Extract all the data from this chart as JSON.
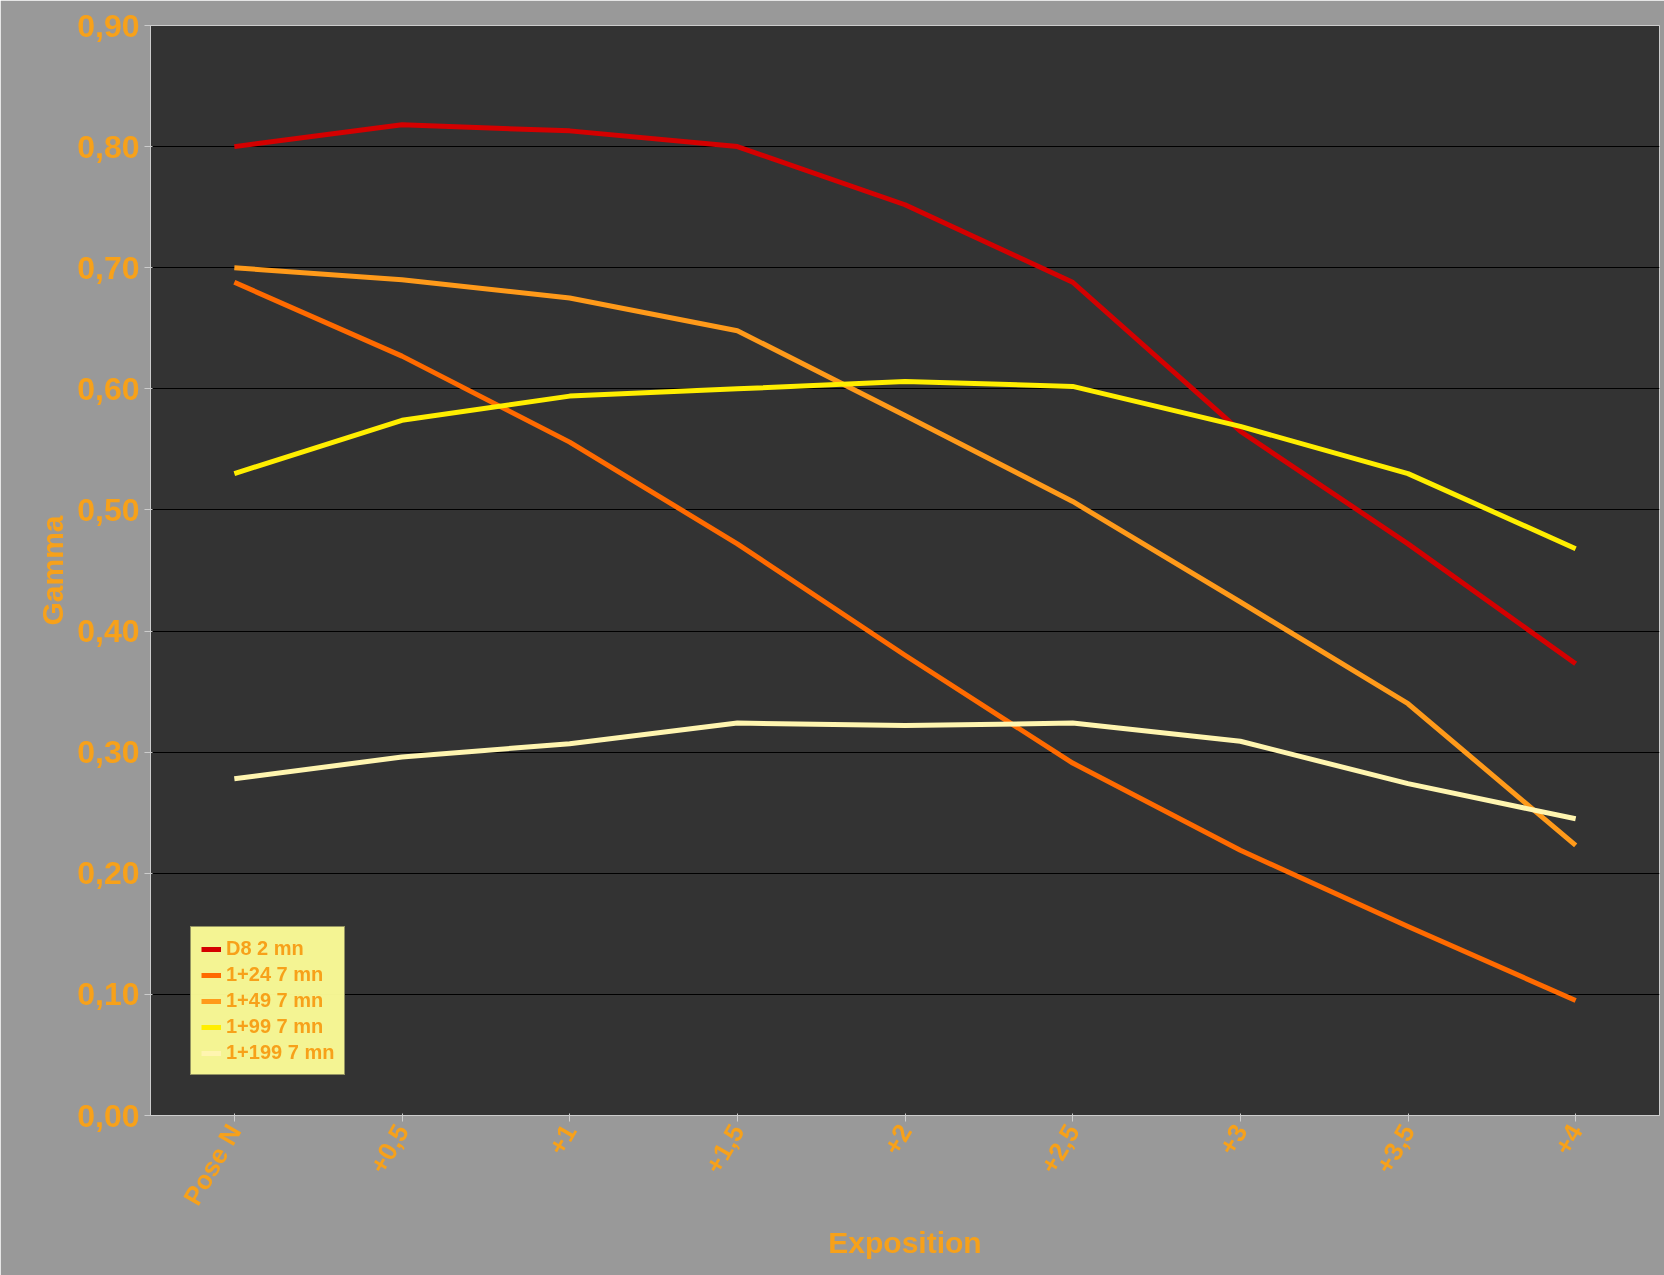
{
  "chart_data": {
    "type": "line",
    "xlabel": "Exposition",
    "ylabel": "Gamma",
    "categories": [
      "Pose N",
      "+0,5",
      "+1",
      "+1,5",
      "+2",
      "+2,5",
      "+3",
      "+3,5",
      "+4"
    ],
    "series": [
      {
        "name": "D8 2 mn",
        "color": "#d40000",
        "values": [
          0.8,
          0.818,
          0.813,
          0.8,
          0.752,
          0.688,
          0.565,
          0.472,
          0.373
        ]
      },
      {
        "name": "1+24 7 mn",
        "color": "#ff6a00",
        "values": [
          0.688,
          0.627,
          0.556,
          0.472,
          0.38,
          0.291,
          0.219,
          0.156,
          0.095
        ]
      },
      {
        "name": "1+49 7 mn",
        "color": "#ff9a1a",
        "values": [
          0.7,
          0.69,
          0.675,
          0.648,
          0.578,
          0.507,
          0.424,
          0.34,
          0.223
        ]
      },
      {
        "name": "1+99 7 mn",
        "color": "#ffee00",
        "values": [
          0.53,
          0.574,
          0.594,
          0.6,
          0.606,
          0.602,
          0.569,
          0.53,
          0.468
        ]
      },
      {
        "name": "1+199 7 mn",
        "color": "#fff5b0",
        "values": [
          0.278,
          0.296,
          0.307,
          0.324,
          0.322,
          0.324,
          0.309,
          0.274,
          0.245
        ]
      }
    ],
    "ylim": [
      0,
      0.9
    ],
    "yticks": [
      {
        "value": 0,
        "label": "0,00"
      },
      {
        "value": 0.1,
        "label": "0,10"
      },
      {
        "value": 0.2,
        "label": "0,20"
      },
      {
        "value": 0.3,
        "label": "0,30"
      },
      {
        "value": 0.4,
        "label": "0,40"
      },
      {
        "value": 0.5,
        "label": "0,50"
      },
      {
        "value": 0.6,
        "label": "0,60"
      },
      {
        "value": 0.7,
        "label": "0,70"
      },
      {
        "value": 0.8,
        "label": "0,80"
      },
      {
        "value": 0.9,
        "label": "0,90"
      }
    ],
    "grid": "y",
    "legend": "bottom left",
    "marker": "none",
    "line_style": "solid"
  }
}
